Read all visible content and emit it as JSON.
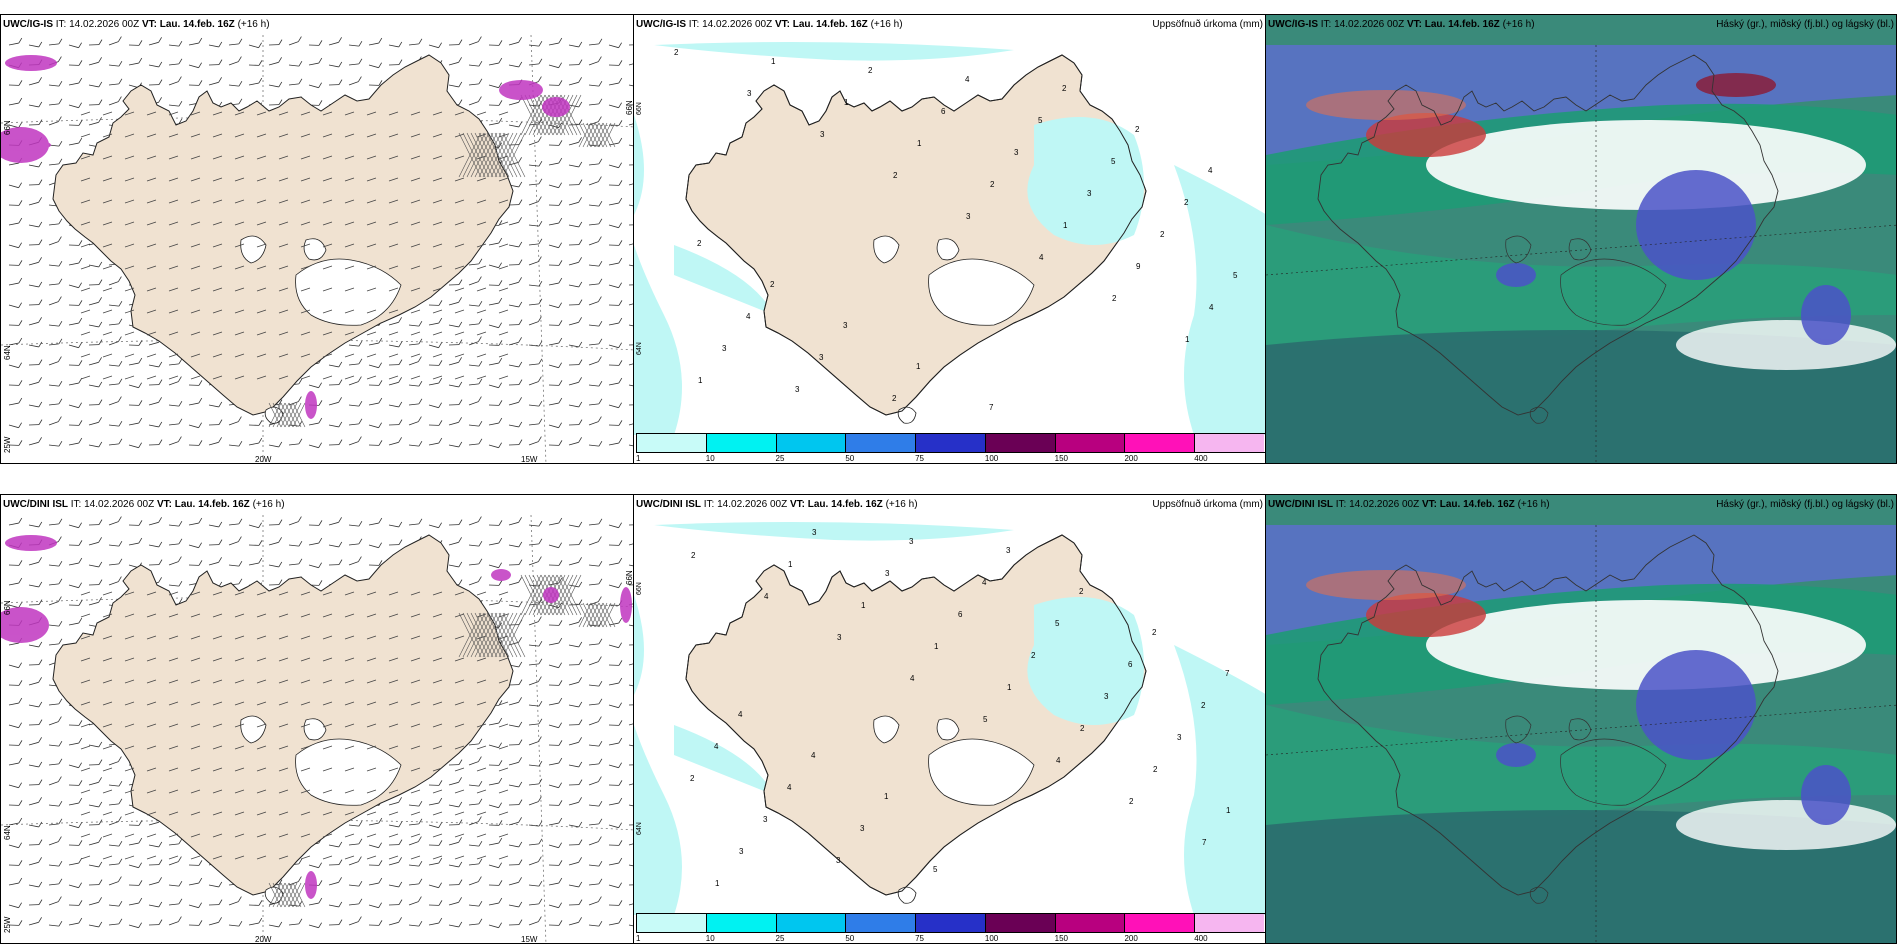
{
  "colors": {
    "land": "#f0e2d1",
    "ice": "#ffffff",
    "precip": "#bff7f5",
    "coast": "#222222",
    "purple": "#c036c0",
    "cloud_high": "#1f9a76",
    "cloud_mid": "#4b52c8",
    "cloud_low": "#cc3a3a"
  },
  "rows": [
    {
      "model": "UWC/IG-IS",
      "it_label": "IT:",
      "it": "14.02.2026 00Z",
      "vt_label": "VT:",
      "vt": "Lau. 14.feb. 16Z",
      "lead": "(+16 h)",
      "precip_title": "Uppsöfnuð úrkoma (mm)",
      "cloud_title": "Háský (gr.), miðský (fj.bl.) og lágský (bl.)",
      "lat_labels": [
        "66N",
        "64N"
      ],
      "lon_labels": [
        "20W",
        "15W"
      ],
      "corner_label": "25W",
      "right_edge_labels": [
        "66N",
        "64N"
      ],
      "precip_points": [
        "2",
        "3",
        "3",
        "2",
        "3",
        "4",
        "2",
        "1",
        "1",
        "1",
        "1",
        "1",
        "2",
        "1",
        "9",
        "4",
        "3",
        "3",
        "2",
        "6",
        "3",
        "3",
        "2",
        "5",
        "4",
        "3",
        "2",
        "4",
        "5",
        "5",
        "2",
        "2",
        "2",
        "3",
        "1",
        "7",
        "2",
        "2",
        "4"
      ]
    },
    {
      "model": "UWC/DINI ISL",
      "it_label": "IT:",
      "it": "14.02.2026 00Z",
      "vt_label": "VT:",
      "vt": "Lau. 14.feb. 16Z",
      "lead": "(+16 h)",
      "precip_title": "Uppsöfnuð úrkoma (mm)",
      "cloud_title": "Háský (gr.), miðský (fj.bl.) og lágský (bl.)",
      "lat_labels": [
        "66N",
        "64N"
      ],
      "lon_labels": [
        "20W",
        "15W"
      ],
      "corner_label": "25W",
      "right_edge_labels": [
        "66N",
        "64N"
      ],
      "precip_points": [
        "2",
        "4",
        "3",
        "4",
        "5",
        "4",
        "2",
        "7",
        "1",
        "1",
        "1",
        "1",
        "1",
        "2",
        "2",
        "1",
        "3",
        "3",
        "3",
        "6",
        "2",
        "3",
        "3",
        "2",
        "3",
        "3",
        "3",
        "4",
        "5",
        "6",
        "2",
        "4",
        "4",
        "3",
        "5",
        "3",
        "2",
        "2",
        "7",
        "4",
        "4",
        "1"
      ]
    }
  ],
  "colorbar": {
    "ticks": [
      "1",
      "10",
      "25",
      "50",
      "75",
      "100",
      "150",
      "200",
      "400"
    ],
    "colors": [
      "#c8fbf8",
      "#00f2f2",
      "#00c6ef",
      "#2f7de8",
      "#2630c8",
      "#6a0055",
      "#b8007f",
      "#ff11b8",
      "#f6b6f0"
    ]
  }
}
